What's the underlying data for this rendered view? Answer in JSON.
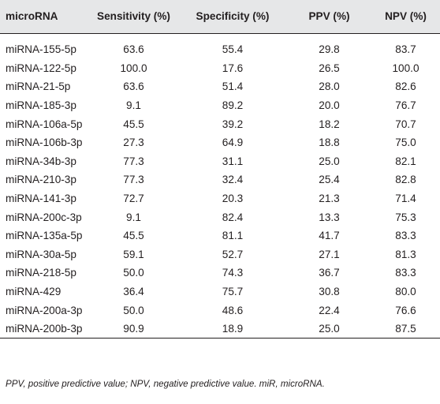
{
  "table": {
    "headers": [
      "microRNA",
      "Sensitivity (%)",
      "Specificity (%)",
      "PPV (%)",
      "NPV (%)"
    ],
    "rows": [
      [
        "miRNA-155-5p",
        "63.6",
        "55.4",
        "29.8",
        "83.7"
      ],
      [
        "miRNA-122-5p",
        "100.0",
        "17.6",
        "26.5",
        "100.0"
      ],
      [
        "miRNA-21-5p",
        "63.6",
        "51.4",
        "28.0",
        "82.6"
      ],
      [
        "miRNA-185-3p",
        "9.1",
        "89.2",
        "20.0",
        "76.7"
      ],
      [
        "miRNA-106a-5p",
        "45.5",
        "39.2",
        "18.2",
        "70.7"
      ],
      [
        "miRNA-106b-3p",
        "27.3",
        "64.9",
        "18.8",
        "75.0"
      ],
      [
        "miRNA-34b-3p",
        "77.3",
        "31.1",
        "25.0",
        "82.1"
      ],
      [
        "miRNA-210-3p",
        "77.3",
        "32.4",
        "25.4",
        "82.8"
      ],
      [
        "miRNA-141-3p",
        "72.7",
        "20.3",
        "21.3",
        "71.4"
      ],
      [
        "miRNA-200c-3p",
        "9.1",
        "82.4",
        "13.3",
        "75.3"
      ],
      [
        "miRNA-135a-5p",
        "45.5",
        "81.1",
        "41.7",
        "83.3"
      ],
      [
        "miRNA-30a-5p",
        "59.1",
        "52.7",
        "27.1",
        "81.3"
      ],
      [
        "miRNA-218-5p",
        "50.0",
        "74.3",
        "36.7",
        "83.3"
      ],
      [
        "miRNA-429",
        "36.4",
        "75.7",
        "30.8",
        "80.0"
      ],
      [
        "miRNA-200a-3p",
        "50.0",
        "48.6",
        "22.4",
        "76.6"
      ],
      [
        "miRNA-200b-3p",
        "90.9",
        "18.9",
        "25.0",
        "87.5"
      ]
    ]
  },
  "footnote": "PPV, positive predictive value; NPV, negative predictive value. miR, microRNA."
}
